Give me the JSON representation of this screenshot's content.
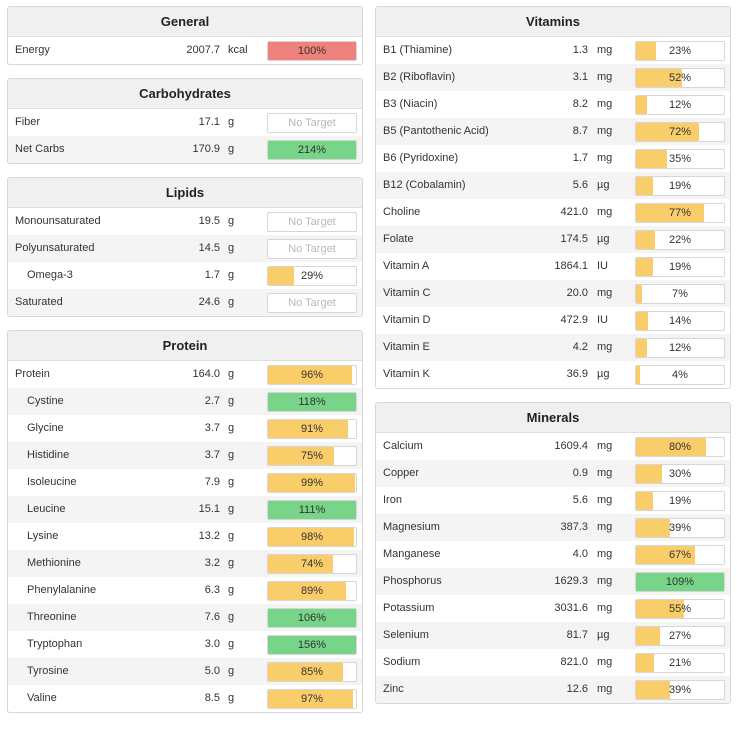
{
  "panels": {
    "general": {
      "title": "General",
      "rows": [
        {
          "name": "Energy",
          "amount": "2007.7",
          "unit": "kcal",
          "label": "100%",
          "pct": 100,
          "color": "red"
        }
      ]
    },
    "carbohydrates": {
      "title": "Carbohydrates",
      "rows": [
        {
          "name": "Fiber",
          "amount": "17.1",
          "unit": "g",
          "label": "No Target",
          "pct": 0,
          "color": "none"
        },
        {
          "name": "Net Carbs",
          "amount": "170.9",
          "unit": "g",
          "label": "214%",
          "pct": 100,
          "color": "green"
        }
      ]
    },
    "lipids": {
      "title": "Lipids",
      "rows": [
        {
          "name": "Monounsaturated",
          "amount": "19.5",
          "unit": "g",
          "label": "No Target",
          "pct": 0,
          "color": "none"
        },
        {
          "name": "Polyunsaturated",
          "amount": "14.5",
          "unit": "g",
          "label": "No Target",
          "pct": 0,
          "color": "none"
        },
        {
          "name": "Omega-3",
          "amount": "1.7",
          "unit": "g",
          "label": "29%",
          "pct": 29,
          "color": "yellow",
          "sub": true
        },
        {
          "name": "Saturated",
          "amount": "24.6",
          "unit": "g",
          "label": "No Target",
          "pct": 0,
          "color": "none"
        }
      ]
    },
    "protein": {
      "title": "Protein",
      "rows": [
        {
          "name": "Protein",
          "amount": "164.0",
          "unit": "g",
          "label": "96%",
          "pct": 96,
          "color": "yellow"
        },
        {
          "name": "Cystine",
          "amount": "2.7",
          "unit": "g",
          "label": "118%",
          "pct": 100,
          "color": "green",
          "sub": true
        },
        {
          "name": "Glycine",
          "amount": "3.7",
          "unit": "g",
          "label": "91%",
          "pct": 91,
          "color": "yellow",
          "sub": true
        },
        {
          "name": "Histidine",
          "amount": "3.7",
          "unit": "g",
          "label": "75%",
          "pct": 75,
          "color": "yellow",
          "sub": true
        },
        {
          "name": "Isoleucine",
          "amount": "7.9",
          "unit": "g",
          "label": "99%",
          "pct": 99,
          "color": "yellow",
          "sub": true
        },
        {
          "name": "Leucine",
          "amount": "15.1",
          "unit": "g",
          "label": "111%",
          "pct": 100,
          "color": "green",
          "sub": true
        },
        {
          "name": "Lysine",
          "amount": "13.2",
          "unit": "g",
          "label": "98%",
          "pct": 98,
          "color": "yellow",
          "sub": true
        },
        {
          "name": "Methionine",
          "amount": "3.2",
          "unit": "g",
          "label": "74%",
          "pct": 74,
          "color": "yellow",
          "sub": true
        },
        {
          "name": "Phenylalanine",
          "amount": "6.3",
          "unit": "g",
          "label": "89%",
          "pct": 89,
          "color": "yellow",
          "sub": true
        },
        {
          "name": "Threonine",
          "amount": "7.6",
          "unit": "g",
          "label": "106%",
          "pct": 100,
          "color": "green",
          "sub": true
        },
        {
          "name": "Tryptophan",
          "amount": "3.0",
          "unit": "g",
          "label": "156%",
          "pct": 100,
          "color": "green",
          "sub": true
        },
        {
          "name": "Tyrosine",
          "amount": "5.0",
          "unit": "g",
          "label": "85%",
          "pct": 85,
          "color": "yellow",
          "sub": true
        },
        {
          "name": "Valine",
          "amount": "8.5",
          "unit": "g",
          "label": "97%",
          "pct": 97,
          "color": "yellow",
          "sub": true
        }
      ]
    },
    "vitamins": {
      "title": "Vitamins",
      "rows": [
        {
          "name": "B1 (Thiamine)",
          "amount": "1.3",
          "unit": "mg",
          "label": "23%",
          "pct": 23,
          "color": "yellow"
        },
        {
          "name": "B2 (Riboflavin)",
          "amount": "3.1",
          "unit": "mg",
          "label": "52%",
          "pct": 52,
          "color": "yellow"
        },
        {
          "name": "B3 (Niacin)",
          "amount": "8.2",
          "unit": "mg",
          "label": "12%",
          "pct": 12,
          "color": "yellow"
        },
        {
          "name": "B5 (Pantothenic Acid)",
          "amount": "8.7",
          "unit": "mg",
          "label": "72%",
          "pct": 72,
          "color": "yellow"
        },
        {
          "name": "B6 (Pyridoxine)",
          "amount": "1.7",
          "unit": "mg",
          "label": "35%",
          "pct": 35,
          "color": "yellow"
        },
        {
          "name": "B12 (Cobalamin)",
          "amount": "5.6",
          "unit": "µg",
          "label": "19%",
          "pct": 19,
          "color": "yellow"
        },
        {
          "name": "Choline",
          "amount": "421.0",
          "unit": "mg",
          "label": "77%",
          "pct": 77,
          "color": "yellow"
        },
        {
          "name": "Folate",
          "amount": "174.5",
          "unit": "µg",
          "label": "22%",
          "pct": 22,
          "color": "yellow"
        },
        {
          "name": "Vitamin A",
          "amount": "1864.1",
          "unit": "IU",
          "label": "19%",
          "pct": 19,
          "color": "yellow"
        },
        {
          "name": "Vitamin C",
          "amount": "20.0",
          "unit": "mg",
          "label": "7%",
          "pct": 7,
          "color": "yellow"
        },
        {
          "name": "Vitamin D",
          "amount": "472.9",
          "unit": "IU",
          "label": "14%",
          "pct": 14,
          "color": "yellow"
        },
        {
          "name": "Vitamin E",
          "amount": "4.2",
          "unit": "mg",
          "label": "12%",
          "pct": 12,
          "color": "yellow"
        },
        {
          "name": "Vitamin K",
          "amount": "36.9",
          "unit": "µg",
          "label": "4%",
          "pct": 4,
          "color": "yellow"
        }
      ]
    },
    "minerals": {
      "title": "Minerals",
      "rows": [
        {
          "name": "Calcium",
          "amount": "1609.4",
          "unit": "mg",
          "label": "80%",
          "pct": 80,
          "color": "yellow"
        },
        {
          "name": "Copper",
          "amount": "0.9",
          "unit": "mg",
          "label": "30%",
          "pct": 30,
          "color": "yellow"
        },
        {
          "name": "Iron",
          "amount": "5.6",
          "unit": "mg",
          "label": "19%",
          "pct": 19,
          "color": "yellow"
        },
        {
          "name": "Magnesium",
          "amount": "387.3",
          "unit": "mg",
          "label": "39%",
          "pct": 39,
          "color": "yellow"
        },
        {
          "name": "Manganese",
          "amount": "4.0",
          "unit": "mg",
          "label": "67%",
          "pct": 67,
          "color": "yellow"
        },
        {
          "name": "Phosphorus",
          "amount": "1629.3",
          "unit": "mg",
          "label": "109%",
          "pct": 100,
          "color": "green"
        },
        {
          "name": "Potassium",
          "amount": "3031.6",
          "unit": "mg",
          "label": "55%",
          "pct": 55,
          "color": "yellow"
        },
        {
          "name": "Selenium",
          "amount": "81.7",
          "unit": "µg",
          "label": "27%",
          "pct": 27,
          "color": "yellow"
        },
        {
          "name": "Sodium",
          "amount": "821.0",
          "unit": "mg",
          "label": "21%",
          "pct": 21,
          "color": "yellow"
        },
        {
          "name": "Zinc",
          "amount": "12.6",
          "unit": "mg",
          "label": "39%",
          "pct": 39,
          "color": "yellow"
        }
      ]
    }
  },
  "colors": {
    "yellow": "#f9cd6a",
    "green": "#77d488",
    "red": "#ee817c"
  }
}
